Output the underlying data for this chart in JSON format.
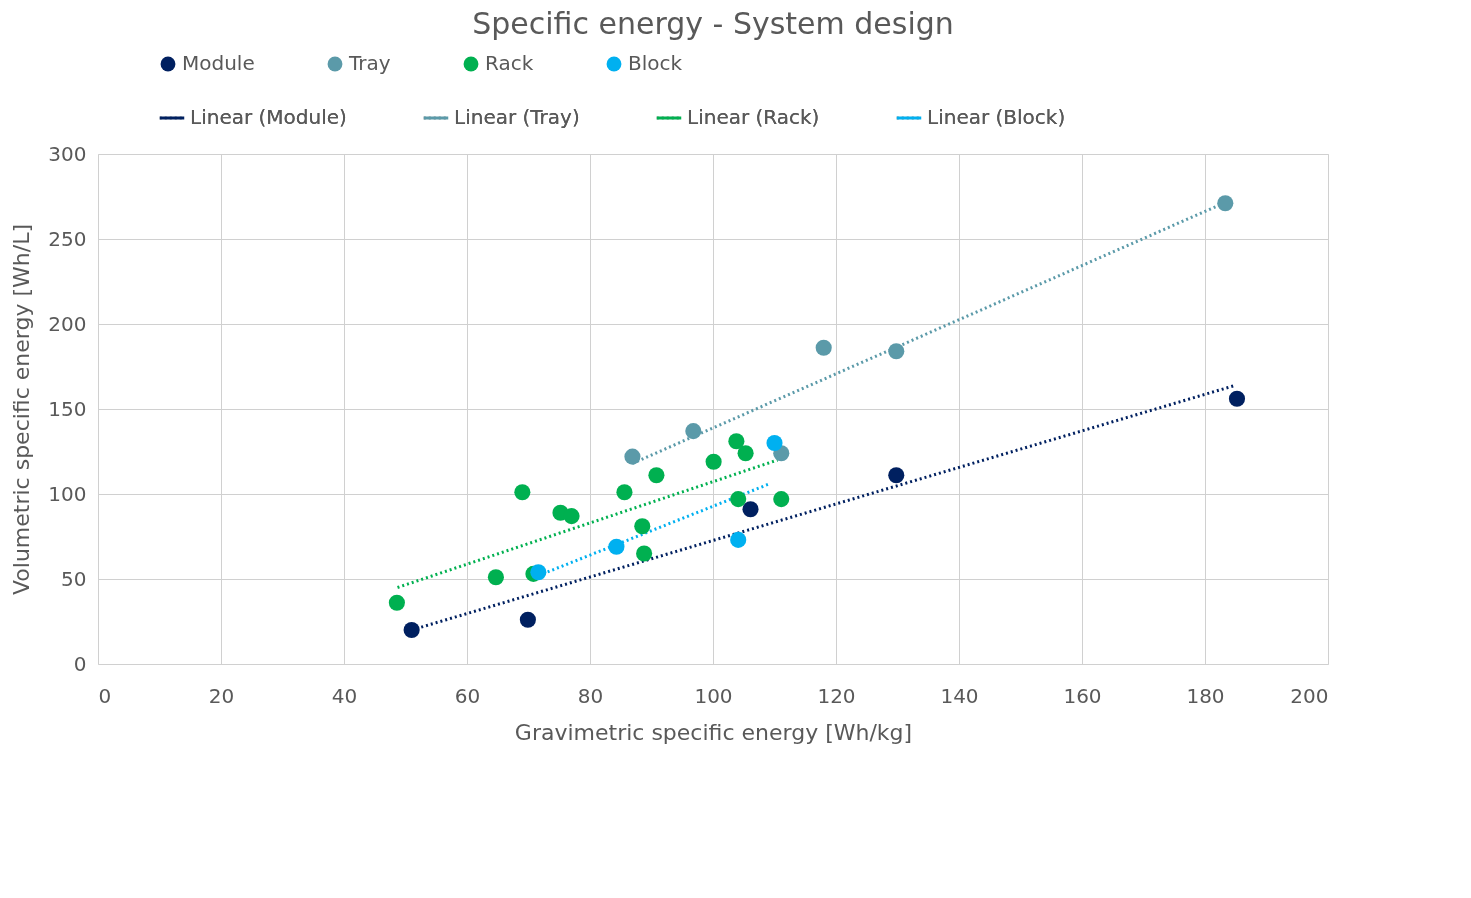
{
  "chart_data": {
    "type": "scatter",
    "title": "Specific energy - System design",
    "xlabel": "Gravimetric specific energy [Wh/kg]",
    "ylabel": "Volumetric specific energy [Wh/L]",
    "xlim": [
      0,
      200
    ],
    "ylim": [
      0,
      300
    ],
    "xticks": [
      0,
      20,
      40,
      60,
      80,
      100,
      120,
      140,
      160,
      180,
      200
    ],
    "yticks": [
      0,
      50,
      100,
      150,
      200,
      250,
      300
    ],
    "grid": true,
    "legend": "top",
    "marker": "circle",
    "series": [
      {
        "name": "Module",
        "color": "#002060",
        "x": [
          51.0,
          69.9,
          106.1,
          129.8,
          185.2
        ],
        "values": [
          20,
          26,
          91,
          111,
          156
        ]
      },
      {
        "name": "Tray",
        "color": "#5b9aa9",
        "x": [
          86.9,
          96.8,
          111.1,
          118.0,
          129.8,
          183.3
        ],
        "values": [
          122,
          137,
          124,
          186,
          184,
          271
        ]
      },
      {
        "name": "Rack",
        "color": "#00b050",
        "x": [
          48.6,
          64.7,
          70.8,
          69.0,
          75.2,
          77.0,
          85.6,
          90.8,
          88.5,
          88.8,
          100.1,
          103.8,
          105.3,
          104.1,
          111.1
        ],
        "values": [
          36,
          51,
          53,
          101,
          89,
          87,
          101,
          111,
          81,
          65,
          119,
          131,
          124,
          97,
          97
        ]
      },
      {
        "name": "Block",
        "color": "#00b0f0",
        "x": [
          71.6,
          84.3,
          104.1,
          110.0
        ],
        "values": [
          54,
          69,
          73,
          130
        ]
      },
      {
        "name": "Linear (Module)",
        "type": "line",
        "line_style": "dotted",
        "marker": "none",
        "color": "#002060",
        "x": [
          51,
          185
        ],
        "values": [
          20,
          164
        ]
      },
      {
        "name": "Linear (Tray)",
        "type": "line",
        "line_style": "dotted",
        "marker": "none",
        "color": "#5b9aa9",
        "x": [
          86.9,
          183
        ],
        "values": [
          118,
          271
        ]
      },
      {
        "name": "Linear (Rack)",
        "type": "line",
        "line_style": "dotted",
        "marker": "none",
        "color": "#00b050",
        "x": [
          48.7,
          110.5
        ],
        "values": [
          45,
          120
        ]
      },
      {
        "name": "Linear (Block)",
        "type": "line",
        "line_style": "dotted",
        "marker": "none",
        "color": "#00b0f0",
        "x": [
          71.6,
          109.2
        ],
        "values": [
          52,
          106
        ]
      }
    ]
  }
}
